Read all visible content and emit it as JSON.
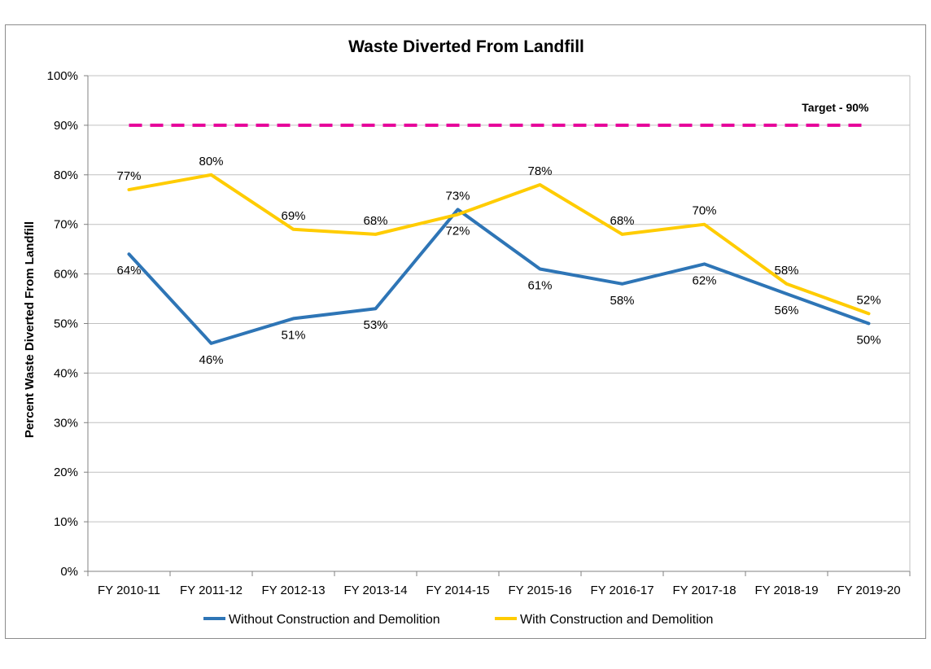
{
  "chart_data": {
    "type": "line",
    "title": "Waste Diverted From Landfill",
    "xlabel": "",
    "ylabel": "Percent Waste Diverted From Landfill",
    "categories": [
      "FY 2010-11",
      "FY 2011-12",
      "FY 2012-13",
      "FY 2013-14",
      "FY 2014-15",
      "FY 2015-16",
      "FY 2016-17",
      "FY 2017-18",
      "FY 2018-19",
      "FY 2019-20"
    ],
    "ylim": [
      0,
      100
    ],
    "y_ticks": [
      "0%",
      "10%",
      "20%",
      "30%",
      "40%",
      "50%",
      "60%",
      "70%",
      "80%",
      "90%",
      "100%"
    ],
    "grid": true,
    "legend_position": "bottom",
    "series": [
      {
        "name": "Without Construction and Demolition",
        "color": "#2e75b6",
        "values": [
          64,
          46,
          51,
          53,
          73,
          61,
          58,
          62,
          56,
          50
        ],
        "labels": [
          "64%",
          "46%",
          "51%",
          "53%",
          "73%",
          "61%",
          "58%",
          "62%",
          "56%",
          "50%"
        ]
      },
      {
        "name": "With Construction and Demolition",
        "color": "#ffcc00",
        "values": [
          77,
          80,
          69,
          68,
          72,
          78,
          68,
          70,
          58,
          52
        ],
        "labels": [
          "77%",
          "80%",
          "69%",
          "68%",
          "72%",
          "78%",
          "68%",
          "70%",
          "58%",
          "52%"
        ]
      }
    ],
    "target": {
      "label": "Target - 90%",
      "value": 90,
      "color": "#e6009a",
      "style": "dashed"
    }
  }
}
